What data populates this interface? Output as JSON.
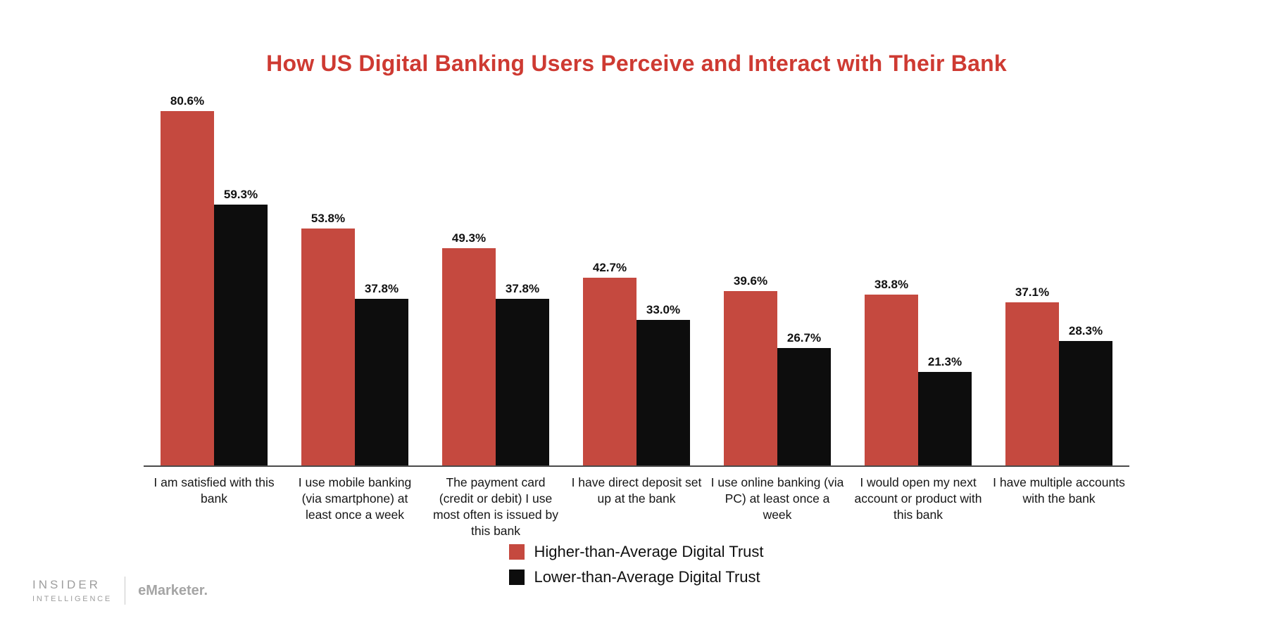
{
  "title": "How US Digital Banking Users Perceive and Interact with Their Bank",
  "colors": {
    "title": "#ce3a32",
    "higher_bar": "#c5493f",
    "lower_bar": "#0d0d0d",
    "axis": "#4a4a4a"
  },
  "chart_data": {
    "type": "bar",
    "title": "How US Digital Banking Users Perceive and Interact with Their Bank",
    "categories": [
      "I am satisfied with this bank",
      "I use mobile banking (via smartphone) at least once a week",
      "The payment card (credit or debit) I use most often is issued by this bank",
      "I have direct deposit set up at the bank",
      "I use online banking (via PC) at least once a week",
      "I would open my next account or product with this bank",
      "I have multiple accounts with the bank"
    ],
    "series": [
      {
        "name": "Higher-than-Average Digital Trust",
        "key": "higher",
        "color": "#c5493f",
        "values": [
          80.6,
          53.8,
          49.3,
          42.7,
          39.6,
          38.8,
          37.1
        ]
      },
      {
        "name": "Lower-than-Average Digital Trust",
        "key": "lower",
        "color": "#0d0d0d",
        "values": [
          59.3,
          37.8,
          37.8,
          33.0,
          26.7,
          21.3,
          28.3
        ]
      }
    ],
    "ylim": [
      0,
      85
    ],
    "value_suffix": "%",
    "value_labels": true,
    "grid": false,
    "legend_position": "bottom"
  },
  "footer": {
    "brand_top": "INSIDER",
    "brand_bottom": "INTELLIGENCE",
    "brand_secondary": "eMarketer."
  }
}
